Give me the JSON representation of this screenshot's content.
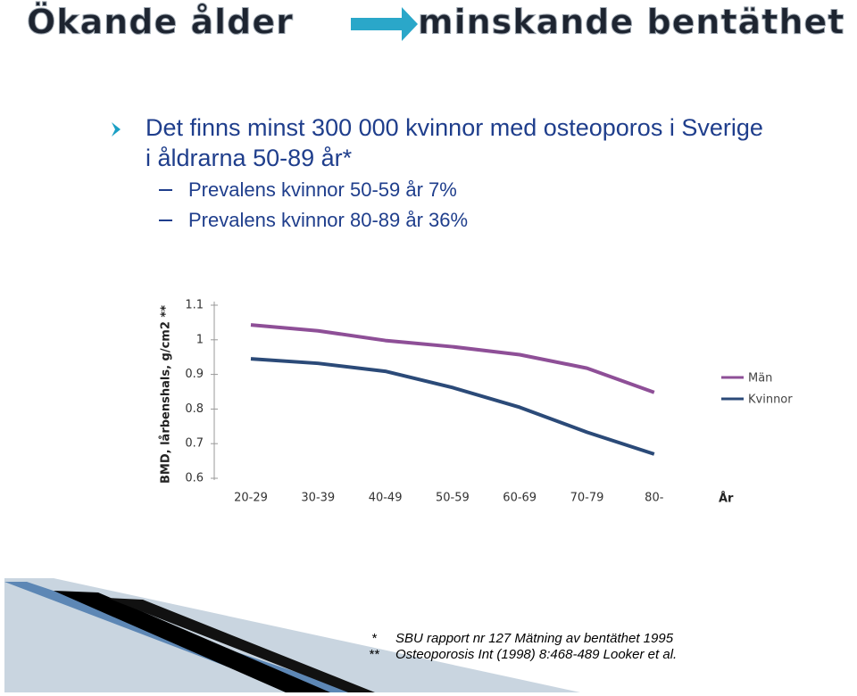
{
  "header": {
    "title_left": "Ökande ålder",
    "title_right": "minskande bentäthet"
  },
  "bullets": [
    {
      "text": "Det finns minst 300 000 kvinnor med osteoporos i Sverige",
      "text2": "i åldrarna 50-89 år*",
      "sub": [
        "Prevalens kvinnor 50-59 år 7%",
        "Prevalens kvinnor 80-89 år 36%"
      ]
    }
  ],
  "chart_data": {
    "type": "line",
    "y_label": "BMD, lårbenshals, g/cm2 **",
    "x_label": "År",
    "categories": [
      "20-29",
      "30-39",
      "40-49",
      "50-59",
      "60-69",
      "70-79",
      "80-"
    ],
    "series": [
      {
        "name": "Män",
        "color": "#8e4f97",
        "values": [
          1.043,
          1.026,
          0.998,
          0.98,
          0.957,
          0.918,
          0.848
        ]
      },
      {
        "name": "Kvinnor",
        "color": "#2b4a78",
        "values": [
          0.945,
          0.932,
          0.909,
          0.862,
          0.805,
          0.733,
          0.67
        ]
      }
    ],
    "ylim": [
      0.6,
      1.1
    ],
    "yticks": [
      0.6,
      0.7,
      0.8,
      0.9,
      1,
      1.1
    ],
    "grid": false,
    "legend": "right"
  },
  "footnotes": [
    {
      "marker": "*",
      "text": "SBU rapport nr 127 Mätning av bentäthet 1995"
    },
    {
      "marker": "**",
      "text": "Osteoporosis Int (1998) 8:468-489 Looker et al."
    }
  ]
}
